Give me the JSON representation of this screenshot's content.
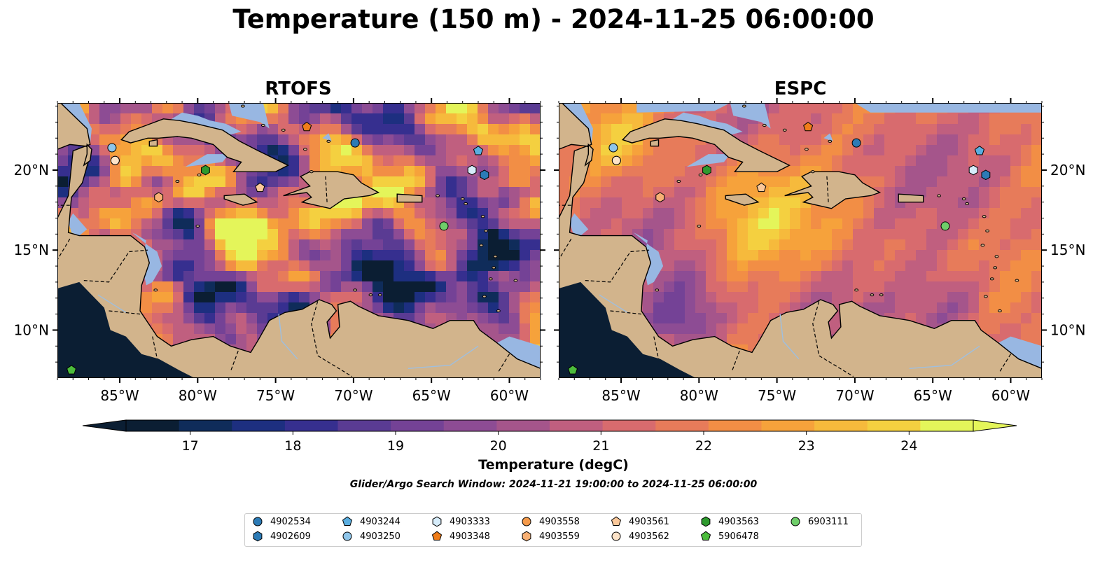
{
  "figure": {
    "title": "Temperature (150 m) - 2024-11-25 06:00:00",
    "colorbar_label": "Temperature (degC)",
    "search_window": "Glider/Argo Search Window: 2024-11-21 19:00:00 to 2024-11-25 06:00:00"
  },
  "colors": {
    "land": "#d2b48c",
    "shallow": "#98b7e2",
    "colormap": [
      "#0b1e33",
      "#0f2c5a",
      "#1d2f80",
      "#362f8f",
      "#5a3b93",
      "#744296",
      "#8d4c94",
      "#a5558b",
      "#c05f7f",
      "#d86b6e",
      "#e77b5a",
      "#f28e45",
      "#f6a23b",
      "#f6ba3c",
      "#f4d040",
      "#e4f55a"
    ]
  },
  "chart_data": [
    {
      "type": "heatmap",
      "title": "RTOFS",
      "lon_range": [
        -89,
        -58
      ],
      "lat_range": [
        7,
        24.2
      ],
      "x_ticks": [
        "85°W",
        "80°W",
        "75°W",
        "70°W",
        "65°W",
        "60°W"
      ],
      "y_ticks": [
        "10°N",
        "15°N",
        "20°N"
      ],
      "y_ticks_side": "left"
    },
    {
      "type": "heatmap",
      "title": "ESPC",
      "lon_range": [
        -89,
        -58
      ],
      "lat_range": [
        7,
        24.2
      ],
      "x_ticks": [
        "85°W",
        "80°W",
        "75°W",
        "70°W",
        "65°W",
        "60°W"
      ],
      "y_ticks": [
        "10°N",
        "15°N",
        "20°N"
      ],
      "y_ticks_side": "right"
    }
  ],
  "colorbar": {
    "vmin": 16.375,
    "vmax": 24.625,
    "ticks": [
      "17",
      "18",
      "19",
      "20",
      "21",
      "22",
      "23",
      "24"
    ],
    "tick_values": [
      17,
      18,
      19,
      20,
      21,
      22,
      23,
      24
    ],
    "extend": "both"
  },
  "markers": [
    {
      "id": "4902534",
      "lon": -69.9,
      "lat": 21.7,
      "shape": "circle",
      "color": "#2c7bb6"
    },
    {
      "id": "4902609",
      "lon": -61.6,
      "lat": 19.7,
      "shape": "hexagon",
      "color": "#2c7bb6"
    },
    {
      "id": "4903244",
      "lon": -62.0,
      "lat": 21.2,
      "shape": "pentagon",
      "color": "#5aaee0"
    },
    {
      "id": "4903250",
      "lon": -85.5,
      "lat": 21.4,
      "shape": "circle",
      "color": "#8ec5ea"
    },
    {
      "id": "4903333",
      "lon": -62.4,
      "lat": 20.0,
      "shape": "hexagon",
      "color": "#d6ecfa"
    },
    {
      "id": "4903348",
      "lon": -73.0,
      "lat": 22.7,
      "shape": "pentagon",
      "color": "#f07d1a"
    },
    {
      "id": "4903558",
      "lon": -85.3,
      "lat": 20.6,
      "shape": "circle",
      "color": "#f59a4a"
    },
    {
      "id": "4903559",
      "lon": -82.5,
      "lat": 18.3,
      "shape": "hexagon",
      "color": "#f8b074"
    },
    {
      "id": "4903561",
      "lon": -76.0,
      "lat": 18.9,
      "shape": "pentagon",
      "color": "#fbc89a"
    },
    {
      "id": "4903562",
      "lon": -85.3,
      "lat": 20.6,
      "shape": "circle",
      "color": "#fde3c8"
    },
    {
      "id": "4903563",
      "lon": -79.5,
      "lat": 20.0,
      "shape": "hexagon",
      "color": "#2e9a2e"
    },
    {
      "id": "5906478",
      "lon": -88.1,
      "lat": 7.5,
      "shape": "pentagon",
      "color": "#4cbc3c"
    },
    {
      "id": "6903111",
      "lon": -64.2,
      "lat": 16.5,
      "shape": "circle",
      "color": "#6fce6a"
    }
  ]
}
